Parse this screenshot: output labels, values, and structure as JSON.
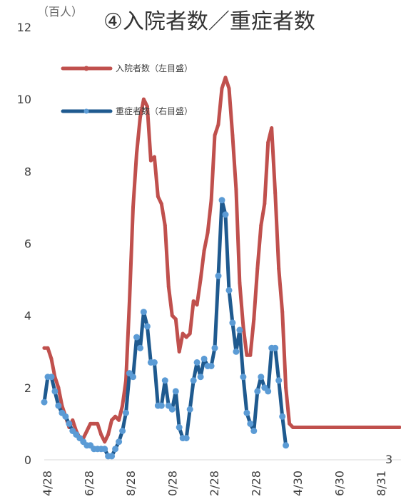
{
  "chart_data": {
    "type": "line",
    "title": "④入院者数／重症者数",
    "unit_label": "（百人）",
    "ylim": [
      0,
      12
    ],
    "y_ticks": [
      "0",
      "2",
      "4",
      "6",
      "8",
      "10",
      "12"
    ],
    "x_ticks": [
      "4/28",
      "6/28",
      "8/28",
      "0/28",
      "2/28",
      "2/28",
      "4/30",
      "6/30",
      "8/31"
    ],
    "x_range": [
      0,
      100
    ],
    "corner_note": "3",
    "legend": [
      {
        "name": "入院者数（左目盛）",
        "color": "#c0504d"
      },
      {
        "name": "重症者数（右目盛）",
        "color": "#1f5a8f"
      }
    ],
    "series": [
      {
        "name": "入院者数（左目盛）",
        "color": "#c0504d",
        "x": [
          0,
          1,
          2,
          3,
          4,
          5,
          6,
          7,
          8,
          9,
          10,
          11,
          12,
          13,
          14,
          15,
          16,
          17,
          18,
          19,
          20,
          21,
          22,
          23,
          24,
          25,
          26,
          27,
          28,
          29,
          30,
          31,
          32,
          33,
          34,
          35,
          36,
          37,
          38,
          39,
          40,
          41,
          42,
          43,
          44,
          45,
          46,
          47,
          48,
          49,
          50,
          51,
          52,
          53,
          54,
          55,
          56,
          57,
          58,
          59,
          60,
          61,
          62,
          63,
          64,
          65,
          66,
          67,
          68,
          69,
          70,
          71,
          72,
          73,
          74,
          75,
          76,
          77,
          78,
          79,
          80,
          81,
          82,
          83,
          84,
          85,
          86,
          87,
          88,
          89,
          90,
          91,
          92,
          93,
          94,
          95,
          96,
          97,
          98,
          99,
          100
        ],
        "values": [
          3.1,
          3.1,
          2.8,
          2.3,
          2.0,
          1.5,
          1.2,
          0.9,
          1.1,
          0.8,
          0.6,
          0.6,
          0.8,
          1.0,
          1.0,
          1.0,
          0.7,
          0.5,
          0.7,
          1.1,
          1.2,
          1.1,
          1.5,
          2.2,
          4.4,
          7.0,
          8.5,
          9.5,
          10.0,
          9.8,
          8.3,
          8.4,
          7.3,
          7.1,
          6.5,
          4.8,
          4.0,
          3.9,
          3.0,
          3.5,
          3.4,
          3.5,
          4.4,
          4.3,
          5.0,
          5.8,
          6.3,
          7.2,
          9.0,
          9.3,
          10.3,
          10.6,
          10.3,
          9.0,
          7.5,
          4.9,
          3.7,
          2.9,
          2.9,
          3.9,
          5.3,
          6.5,
          7.1,
          8.8,
          9.2,
          7.4,
          5.3,
          4.1,
          2.0,
          1.0,
          0.9,
          0.9,
          0.9,
          0.9,
          0.9,
          0.9,
          0.9,
          0.9,
          0.9,
          0.9,
          0.9,
          0.9,
          0.9,
          0.9,
          0.9,
          0.9,
          0.9,
          0.9,
          0.9,
          0.9,
          0.9,
          0.9,
          0.9,
          0.9,
          0.9,
          0.9,
          0.9,
          0.9,
          0.9,
          0.9,
          0.9
        ]
      },
      {
        "name": "重症者数（右目盛）",
        "color": "#1f5a8f",
        "x": [
          0,
          1,
          2,
          3,
          4,
          5,
          6,
          7,
          8,
          9,
          10,
          11,
          12,
          13,
          14,
          15,
          16,
          17,
          18,
          19,
          20,
          21,
          22,
          23,
          24,
          25,
          26,
          27,
          28,
          29,
          30,
          31,
          32,
          33,
          34,
          35,
          36,
          37,
          38,
          39,
          40,
          41,
          42,
          43,
          44,
          45,
          46,
          47,
          48,
          49,
          50,
          51,
          52,
          53,
          54,
          55,
          56,
          57,
          58,
          59,
          60,
          61,
          62,
          63,
          64,
          65,
          66,
          67,
          68
        ],
        "values": [
          1.6,
          2.3,
          2.3,
          1.9,
          1.5,
          1.3,
          1.2,
          1.0,
          0.8,
          0.7,
          0.6,
          0.5,
          0.4,
          0.4,
          0.3,
          0.3,
          0.3,
          0.3,
          0.1,
          0.1,
          0.3,
          0.5,
          0.8,
          1.3,
          2.4,
          2.3,
          3.4,
          3.1,
          4.1,
          3.7,
          2.7,
          2.7,
          1.5,
          1.5,
          2.2,
          1.5,
          1.4,
          1.9,
          0.9,
          0.6,
          0.6,
          1.4,
          2.2,
          2.7,
          2.3,
          2.8,
          2.6,
          2.6,
          3.1,
          5.1,
          7.2,
          6.8,
          4.7,
          3.8,
          3.0,
          3.6,
          2.3,
          1.3,
          1.0,
          0.8,
          1.9,
          2.3,
          2.0,
          1.9,
          3.1,
          3.1,
          2.2,
          1.2,
          0.4
        ]
      }
    ],
    "grid": false,
    "legend_position": "top-left"
  }
}
